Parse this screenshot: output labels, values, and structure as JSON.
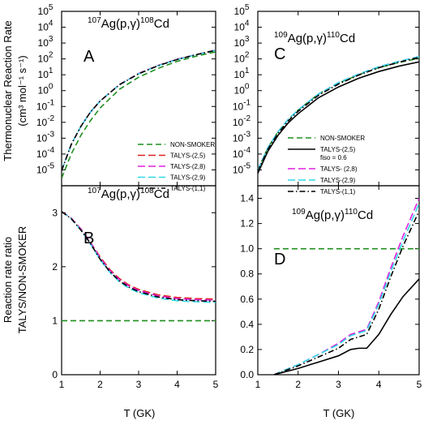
{
  "ylabel_top_line1": "Thermonuclear Reaction Rate",
  "ylabel_top_line2": "(cm³ mol⁻¹ s⁻¹)",
  "ylabel_bottom_line1": "Reaction rate ratio",
  "ylabel_bottom_line2": "TALYS/NON-SMOKER",
  "xlabel": "T (GK)",
  "styles": {
    "NON-SMOKER": {
      "color": "#1f8f1f",
      "dash": "7,4"
    },
    "TALYS-(2,5)": {
      "color": "#e02020",
      "dash": "9,4"
    },
    "TALYS-(2,8)": {
      "color": "#e020e0",
      "dash": "9,4"
    },
    "TALYS-(2,9)": {
      "color": "#30d8e8",
      "dash": "9,4"
    },
    "TALYS-(1,1)": {
      "color": "#000000",
      "dash": "7,3,1.5,3"
    },
    "TALYS-(2,5) fiso": {
      "color": "#000000",
      "dash": ""
    }
  },
  "chart_data": [
    {
      "id": "A",
      "type": "line",
      "panel_label": "A",
      "title": {
        "a1": "107",
        "e1": "Ag(p,",
        "g": "γ",
        "c": ")",
        "a2": "108",
        "e2": "Cd"
      },
      "xlim": [
        1,
        5
      ],
      "ylim": [
        1e-06,
        100000.0
      ],
      "yscale": "log",
      "xticks": [
        1,
        2,
        3,
        4,
        5
      ],
      "yticks": [
        {
          "v": 1e-05,
          "base": "10",
          "exp": "-5"
        },
        {
          "v": 0.0001,
          "base": "10",
          "exp": "-4"
        },
        {
          "v": 0.001,
          "base": "10",
          "exp": "-3"
        },
        {
          "v": 0.01,
          "base": "10",
          "exp": "-2"
        },
        {
          "v": 0.1,
          "base": "10",
          "exp": "-1"
        },
        {
          "v": 1,
          "base": "10",
          "exp": "0"
        },
        {
          "v": 10.0,
          "base": "10",
          "exp": "1"
        },
        {
          "v": 100.0,
          "base": "10",
          "exp": "2"
        },
        {
          "v": 1000.0,
          "base": "10",
          "exp": "3"
        },
        {
          "v": 10000.0,
          "base": "10",
          "exp": "4"
        },
        {
          "v": 100000.0,
          "base": "10",
          "exp": "5"
        }
      ],
      "x": [
        1.0,
        1.25,
        1.5,
        1.75,
        2.0,
        2.5,
        3.0,
        3.5,
        4.0,
        4.5,
        5.0
      ],
      "series": [
        {
          "name": "NON-SMOKER",
          "values": [
            3e-06,
            0.0001,
            0.0015,
            0.013,
            0.08,
            1.2,
            7,
            25,
            70,
            150,
            280
          ]
        },
        {
          "name": "TALYS-(2,5)",
          "values": [
            9e-06,
            0.0004,
            0.0055,
            0.045,
            0.22,
            2.4,
            12,
            38,
            95,
            190,
            360
          ]
        },
        {
          "name": "TALYS-(2,8)",
          "values": [
            9e-06,
            0.0004,
            0.0055,
            0.045,
            0.22,
            2.4,
            12,
            38,
            95,
            190,
            360
          ]
        },
        {
          "name": "TALYS-(2,9)",
          "values": [
            9e-06,
            0.0004,
            0.0055,
            0.045,
            0.22,
            2.35,
            11.5,
            37,
            92,
            185,
            350
          ]
        },
        {
          "name": "TALYS-(1,1)",
          "values": [
            9e-06,
            0.0004,
            0.0055,
            0.045,
            0.22,
            2.35,
            11.5,
            37,
            92,
            185,
            350
          ]
        }
      ],
      "legend": [
        {
          "label": "NON-SMOKER",
          "style": "NON-SMOKER"
        },
        {
          "label": "TALYS-(2,5)",
          "style": "TALYS-(2,5)"
        },
        {
          "label": "TALYS-(2,8)",
          "style": "TALYS-(2,8)"
        },
        {
          "label": "TALYS-(2,9)",
          "style": "TALYS-(2,9)"
        },
        {
          "label": "TALYS-(1,1)",
          "style": "TALYS-(1,1)"
        }
      ],
      "legend_placement": "bottom-right"
    },
    {
      "id": "C",
      "type": "line",
      "panel_label": "C",
      "title": {
        "a1": "109",
        "e1": "Ag(p,",
        "g": "γ",
        "c": ")",
        "a2": "110",
        "e2": "Cd"
      },
      "xlim": [
        1,
        5
      ],
      "ylim": [
        1e-06,
        100000.0
      ],
      "yscale": "log",
      "xticks": [
        1,
        2,
        3,
        4,
        5
      ],
      "yticks": [
        {
          "v": 1e-05,
          "base": "10",
          "exp": "-5"
        },
        {
          "v": 0.0001,
          "base": "10",
          "exp": "-4"
        },
        {
          "v": 0.001,
          "base": "10",
          "exp": "-3"
        },
        {
          "v": 0.01,
          "base": "10",
          "exp": "-2"
        },
        {
          "v": 0.1,
          "base": "10",
          "exp": "-1"
        },
        {
          "v": 1,
          "base": "10",
          "exp": "0"
        },
        {
          "v": 10.0,
          "base": "10",
          "exp": "1"
        },
        {
          "v": 100.0,
          "base": "10",
          "exp": "2"
        },
        {
          "v": 1000.0,
          "base": "10",
          "exp": "3"
        },
        {
          "v": 10000.0,
          "base": "10",
          "exp": "4"
        },
        {
          "v": 100000.0,
          "base": "10",
          "exp": "5"
        }
      ],
      "x": [
        1.0,
        1.25,
        1.5,
        1.75,
        2.0,
        2.5,
        3.0,
        3.5,
        4.0,
        4.5,
        5.0
      ],
      "series": [
        {
          "name": "NON-SMOKER",
          "values": [
            1e-05,
            0.00025,
            0.0025,
            0.015,
            0.06,
            0.6,
            3,
            10,
            28,
            60,
            110
          ]
        },
        {
          "name": "TALYS-(2,5) fiso",
          "values": [
            6e-06,
            0.00015,
            0.0015,
            0.009,
            0.035,
            0.35,
            1.7,
            6,
            16,
            35,
            65
          ]
        },
        {
          "name": "TALYS-(2,8)",
          "values": [
            1e-05,
            0.00025,
            0.0025,
            0.015,
            0.06,
            0.6,
            3.2,
            11,
            32,
            70,
            140
          ]
        },
        {
          "name": "TALYS-(2,9)",
          "values": [
            1e-05,
            0.00025,
            0.0025,
            0.015,
            0.06,
            0.6,
            3.2,
            11,
            32,
            70,
            140
          ]
        },
        {
          "name": "TALYS-(1,1)",
          "values": [
            8e-06,
            0.0002,
            0.002,
            0.012,
            0.05,
            0.5,
            2.6,
            9.5,
            28,
            62,
            125
          ]
        }
      ],
      "legend": [
        {
          "label": "NON-SMOKER",
          "style": "NON-SMOKER"
        },
        {
          "label": "TALYS-(2,5)",
          "sublabel": "fiso = 0.6",
          "style": "TALYS-(2,5) fiso"
        },
        {
          "label": "TALYS- (2,8)",
          "style": "TALYS-(2,8)"
        },
        {
          "label": "TALYS-(2,9)",
          "style": "TALYS-(2,9)"
        },
        {
          "label": "TALYS-(1,1)",
          "style": "TALYS-(1,1)"
        }
      ],
      "legend_placement": "bottom-right"
    },
    {
      "id": "B",
      "type": "line",
      "panel_label": "B",
      "title": {
        "a1": "107",
        "e1": "Ag(p,",
        "g": "γ",
        "c": ")",
        "a2": "108",
        "e2": "Cd"
      },
      "xlim": [
        1,
        5
      ],
      "ylim": [
        0,
        3.5
      ],
      "yscale": "linear",
      "xticks": [
        1,
        2,
        3,
        4,
        5
      ],
      "yticks": [
        {
          "v": 0,
          "label": "0"
        },
        {
          "v": 1,
          "label": "1"
        },
        {
          "v": 2,
          "label": "2"
        },
        {
          "v": 3,
          "label": "3"
        }
      ],
      "x": [
        1.0,
        1.25,
        1.5,
        1.75,
        2.0,
        2.25,
        2.5,
        2.75,
        3.0,
        3.5,
        4.0,
        4.5,
        5.0
      ],
      "series": [
        {
          "name": "NON-SMOKER",
          "values": [
            1,
            1,
            1,
            1,
            1,
            1,
            1,
            1,
            1,
            1,
            1,
            1,
            1
          ]
        },
        {
          "name": "TALYS-(2,5)",
          "values": [
            3.02,
            2.9,
            2.7,
            2.45,
            2.18,
            1.95,
            1.78,
            1.66,
            1.58,
            1.48,
            1.43,
            1.41,
            1.4
          ]
        },
        {
          "name": "TALYS-(2,8)",
          "values": [
            3.02,
            2.9,
            2.7,
            2.45,
            2.16,
            1.93,
            1.76,
            1.64,
            1.56,
            1.46,
            1.41,
            1.39,
            1.38
          ]
        },
        {
          "name": "TALYS-(2,9)",
          "values": [
            3.02,
            2.89,
            2.68,
            2.42,
            2.13,
            1.9,
            1.72,
            1.6,
            1.52,
            1.42,
            1.37,
            1.35,
            1.34
          ]
        },
        {
          "name": "TALYS-(1,1)",
          "values": [
            3.02,
            2.89,
            2.68,
            2.43,
            2.14,
            1.91,
            1.74,
            1.62,
            1.54,
            1.44,
            1.39,
            1.37,
            1.36
          ]
        }
      ]
    },
    {
      "id": "D",
      "type": "line",
      "panel_label": "D",
      "title": {
        "a1": "109",
        "e1": "Ag(p,",
        "g": "γ",
        "c": ")",
        "a2": "110",
        "e2": "Cd"
      },
      "xlim": [
        1,
        5
      ],
      "ylim": [
        0,
        1.5
      ],
      "yscale": "linear",
      "xticks": [
        1,
        2,
        3,
        4,
        5
      ],
      "yticks": [
        {
          "v": 0,
          "label": "0.0"
        },
        {
          "v": 0.2,
          "label": "0.2"
        },
        {
          "v": 0.4,
          "label": "0.4"
        },
        {
          "v": 0.6,
          "label": "0.6"
        },
        {
          "v": 0.8,
          "label": "0.8"
        },
        {
          "v": 1.0,
          "label": "1.0"
        },
        {
          "v": 1.2,
          "label": "1.2"
        },
        {
          "v": 1.4,
          "label": "1.4"
        }
      ],
      "x": [
        1.4,
        2.0,
        2.5,
        3.0,
        3.3,
        3.5,
        3.7,
        4.0,
        4.3,
        4.6,
        5.0
      ],
      "series": [
        {
          "name": "NON-SMOKER",
          "values": [
            1,
            1,
            1,
            1,
            1,
            1,
            1,
            1,
            1,
            1,
            1
          ]
        },
        {
          "name": "TALYS-(2,8)",
          "values": [
            0.0,
            0.08,
            0.16,
            0.25,
            0.32,
            0.34,
            0.36,
            0.58,
            0.85,
            1.1,
            1.4
          ]
        },
        {
          "name": "TALYS-(2,9)",
          "values": [
            0.0,
            0.08,
            0.16,
            0.24,
            0.31,
            0.33,
            0.35,
            0.56,
            0.82,
            1.06,
            1.36
          ]
        },
        {
          "name": "TALYS-(1,1)",
          "values": [
            0.0,
            0.07,
            0.14,
            0.21,
            0.28,
            0.3,
            0.32,
            0.52,
            0.78,
            1.02,
            1.3
          ]
        },
        {
          "name": "TALYS-(2,5) fiso",
          "values": [
            0.0,
            0.05,
            0.1,
            0.15,
            0.2,
            0.21,
            0.21,
            0.32,
            0.48,
            0.62,
            0.76
          ]
        }
      ]
    }
  ]
}
